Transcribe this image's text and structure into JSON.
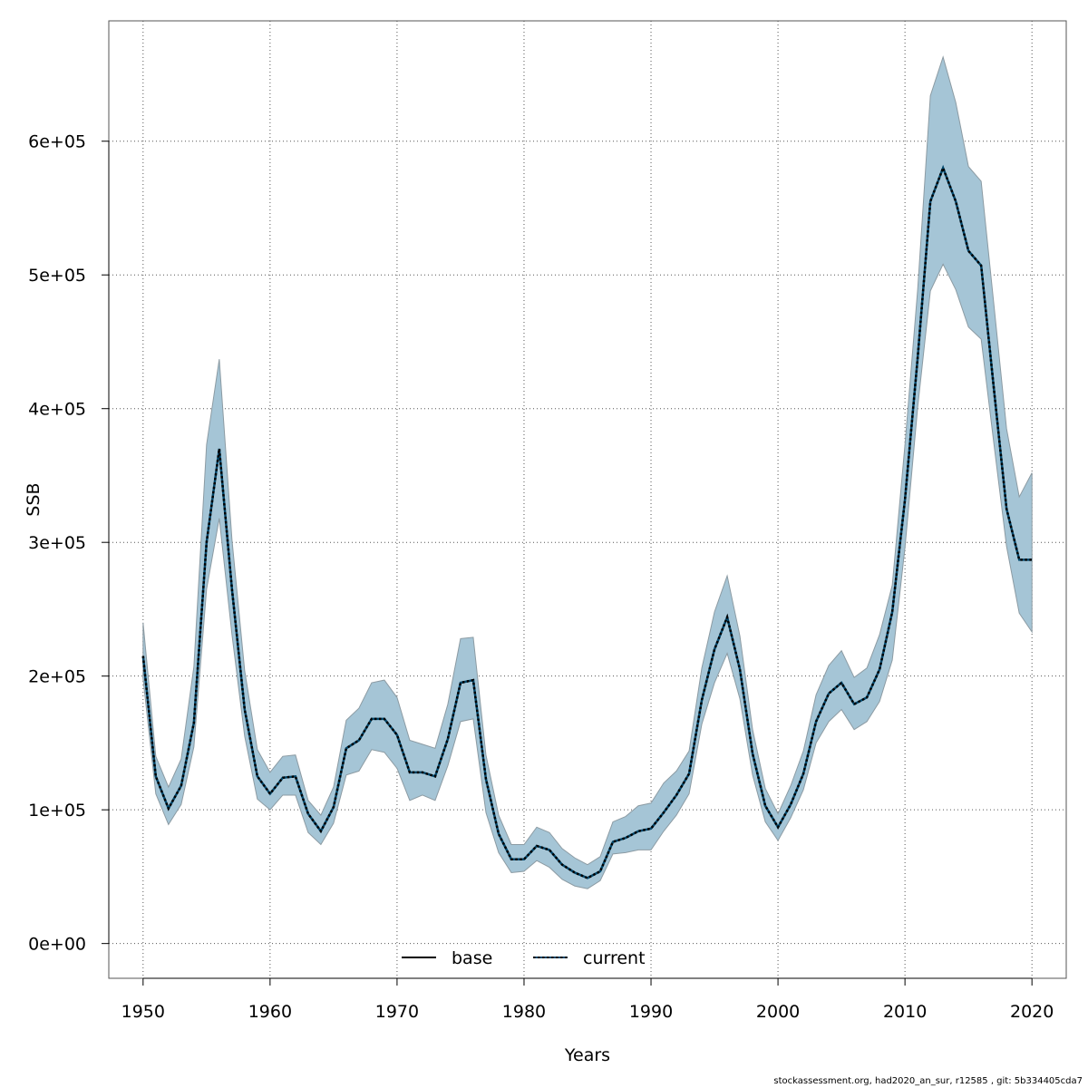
{
  "chart_data": {
    "type": "line",
    "xlabel": "Years",
    "ylabel": "SSB",
    "xlim": [
      1947.3,
      2022.7
    ],
    "ylim": [
      -26000,
      690000
    ],
    "x_ticks": [
      1950,
      1960,
      1970,
      1980,
      1990,
      2000,
      2010,
      2020
    ],
    "x_tick_labels": [
      "1950",
      "1960",
      "1970",
      "1980",
      "1990",
      "2000",
      "2010",
      "2020"
    ],
    "y_ticks": [
      0,
      100000,
      200000,
      300000,
      400000,
      500000,
      600000
    ],
    "y_tick_labels": [
      "0e+00",
      "1e+05",
      "2e+05",
      "3e+05",
      "4e+05",
      "5e+05",
      "6e+05"
    ],
    "grid": true,
    "legend": {
      "position": "bottom-center",
      "entries": [
        "base",
        "current"
      ]
    },
    "colors": {
      "band": "#a5c5d6",
      "band_edge": "#8c9ba3",
      "current_line": "#00476b",
      "current_dash": "#000000",
      "base_line": "#000000",
      "grid": "#555555"
    },
    "x": [
      1950,
      1951,
      1952,
      1953,
      1954,
      1955,
      1956,
      1957,
      1958,
      1959,
      1960,
      1961,
      1962,
      1963,
      1964,
      1965,
      1966,
      1967,
      1968,
      1969,
      1970,
      1971,
      1972,
      1973,
      1974,
      1975,
      1976,
      1977,
      1978,
      1979,
      1980,
      1981,
      1982,
      1983,
      1984,
      1985,
      1986,
      1987,
      1988,
      1989,
      1990,
      1991,
      1992,
      1993,
      1994,
      1995,
      1996,
      1997,
      1998,
      1999,
      2000,
      2001,
      2002,
      2003,
      2004,
      2005,
      2006,
      2007,
      2008,
      2009,
      2010,
      2011,
      2012,
      2013,
      2014,
      2015,
      2016,
      2017,
      2018,
      2019,
      2020
    ],
    "series": [
      {
        "name": "current",
        "style": "dotted",
        "values": [
          215000,
          125000,
          101000,
          118000,
          165000,
          300000,
          370000,
          265000,
          175000,
          125000,
          112000,
          124000,
          125000,
          97000,
          84000,
          102000,
          146000,
          152000,
          168000,
          168000,
          156000,
          128000,
          128000,
          125000,
          153000,
          195000,
          197000,
          123000,
          82000,
          63000,
          63000,
          73000,
          70000,
          59000,
          53000,
          49000,
          54000,
          76000,
          79000,
          84000,
          86000,
          98000,
          111000,
          127000,
          182000,
          220000,
          244000,
          205000,
          142000,
          103000,
          87000,
          104000,
          127000,
          166000,
          187000,
          195000,
          179000,
          184000,
          205000,
          248000,
          332000,
          438000,
          555000,
          580000,
          555000,
          518000,
          507000,
          415000,
          325000,
          287000,
          287000
        ]
      },
      {
        "name": "base",
        "style": "solid",
        "values": [
          215000,
          125000,
          101000,
          118000,
          165000,
          300000,
          370000,
          265000,
          175000,
          125000,
          112000,
          124000,
          125000,
          97000,
          84000,
          102000,
          146000,
          152000,
          168000,
          168000,
          156000,
          128000,
          128000,
          125000,
          153000,
          195000,
          197000,
          123000,
          82000,
          63000,
          63000,
          73000,
          70000,
          59000,
          53000,
          49000,
          54000,
          76000,
          79000,
          84000,
          86000,
          98000,
          111000,
          127000,
          182000,
          220000,
          244000,
          205000,
          142000,
          103000,
          87000,
          104000,
          127000,
          166000,
          187000,
          195000,
          179000,
          184000,
          205000,
          248000,
          332000,
          438000,
          555000,
          580000,
          555000,
          518000,
          507000,
          415000,
          325000,
          287000,
          287000
        ]
      }
    ],
    "band": {
      "lower": [
        198000,
        112000,
        89000,
        104000,
        147000,
        265000,
        318000,
        231000,
        155000,
        108000,
        100000,
        111000,
        111000,
        83000,
        74000,
        90000,
        126000,
        129000,
        145000,
        143000,
        131000,
        107000,
        111000,
        107000,
        133000,
        166000,
        168000,
        98000,
        68000,
        53000,
        54000,
        62000,
        57000,
        48000,
        43000,
        41000,
        47000,
        67000,
        68000,
        70000,
        70000,
        84000,
        96000,
        112000,
        164000,
        195000,
        217000,
        183000,
        126000,
        91000,
        77000,
        94000,
        115000,
        150000,
        166000,
        175000,
        160000,
        166000,
        181000,
        212000,
        296000,
        401000,
        488000,
        508000,
        489000,
        461000,
        452000,
        374000,
        297000,
        247000,
        233000
      ],
      "upper": [
        240000,
        140000,
        117000,
        138000,
        207000,
        373000,
        437000,
        302000,
        204000,
        145000,
        128000,
        140000,
        141000,
        107000,
        96000,
        117000,
        167000,
        176000,
        195000,
        197000,
        184000,
        152000,
        149000,
        146000,
        179000,
        228000,
        229000,
        141000,
        96000,
        74000,
        74000,
        87000,
        83000,
        71000,
        64000,
        59000,
        65000,
        91000,
        95000,
        103000,
        105000,
        120000,
        129000,
        144000,
        206000,
        248000,
        275000,
        230000,
        160000,
        116000,
        97000,
        118000,
        144000,
        186000,
        208000,
        219000,
        199000,
        206000,
        231000,
        268000,
        373000,
        489000,
        634000,
        663000,
        629000,
        581000,
        570000,
        478000,
        385000,
        334000,
        352000
      ]
    }
  },
  "footnote": "stockassessment.org, had2020_an_sur, r12585 , git: 5b334405cda7"
}
